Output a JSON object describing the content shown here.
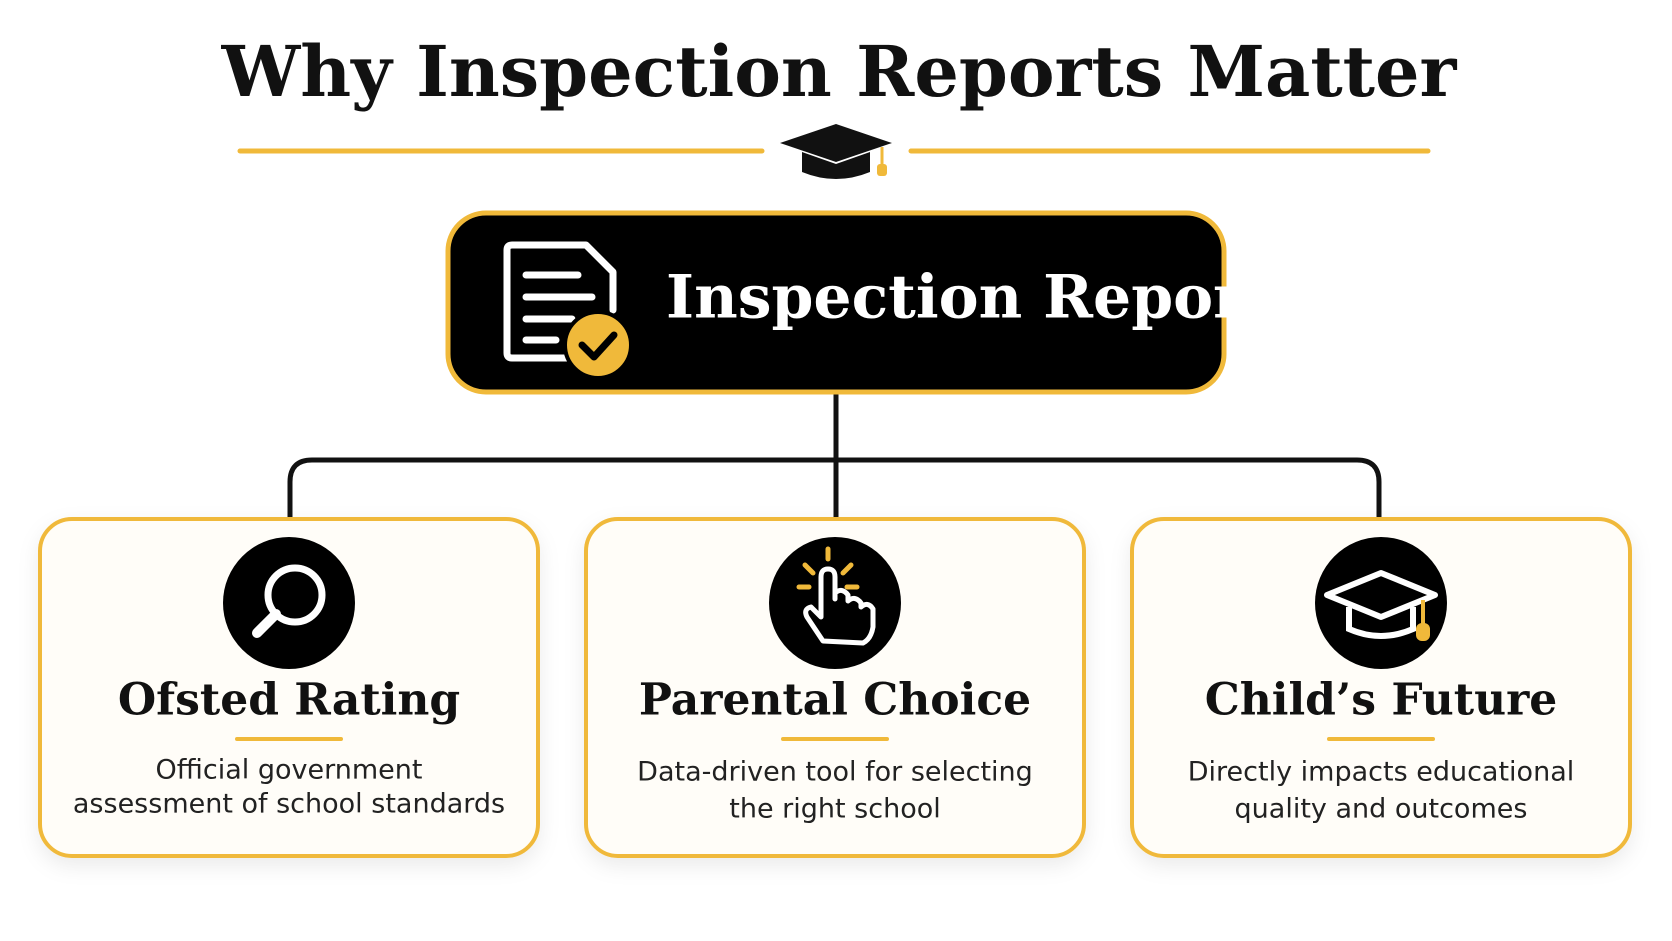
{
  "header": {
    "title": "Why Inspection Reports Matter"
  },
  "root": {
    "label": "Inspection Report"
  },
  "nodes": [
    {
      "title": "Ofsted Rating",
      "description_lines": [
        "Official government",
        "assessment of school standards"
      ]
    },
    {
      "title": "Parental Choice",
      "description_lines": [
        "Data-driven tool for selecting",
        "the right school"
      ]
    },
    {
      "title": "Child’s Future",
      "description_lines": [
        "Directly impacts educational",
        "quality and outcomes"
      ]
    }
  ]
}
